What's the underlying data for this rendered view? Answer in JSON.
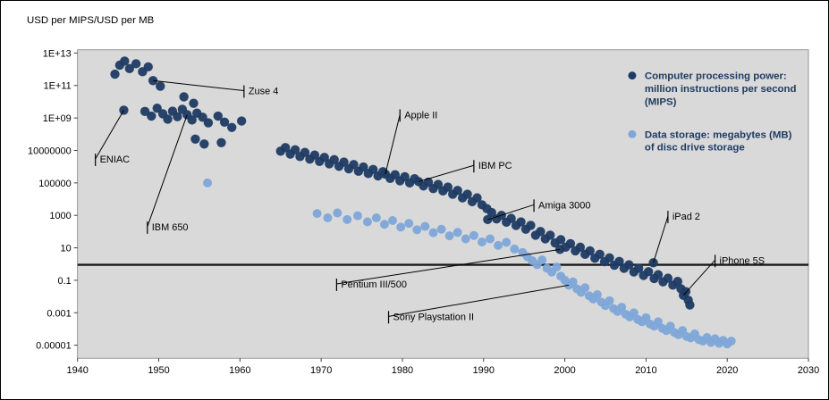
{
  "title": "USD per MIPS/USD per MB",
  "colors": {
    "mips": "#1F3B63",
    "storage": "#7EA6D9",
    "plot_bg": "#D9D9D9",
    "plot_border": "#808080",
    "axis": "#404040",
    "reference_line": "#1A1A1A",
    "annotation_line": "#000000",
    "legend_text": "#1F3B63"
  },
  "legend": [
    {
      "key": "mips",
      "color": "#1F3B63",
      "lines": [
        "Computer processing power:",
        "million instructions per second",
        "(MIPS)"
      ]
    },
    {
      "key": "storage",
      "color": "#7EA6D9",
      "lines": [
        "Data storage: megabytes (MB)",
        "of disc drive storage"
      ]
    }
  ],
  "chart_data": {
    "type": "scatter",
    "title": "USD per MIPS/USD per MB",
    "y_scale": "log",
    "reference_line_y": 0.9,
    "x_axis": {
      "min": 1940,
      "max": 2030,
      "ticks": [
        1940,
        1950,
        1960,
        1970,
        1980,
        1990,
        2000,
        2010,
        2020,
        2030
      ]
    },
    "y_axis": {
      "ticks": [
        {
          "label": "1E+13",
          "value": 10000000000000.0
        },
        {
          "label": "1E+11",
          "value": 100000000000.0
        },
        {
          "label": "1E+09",
          "value": 1000000000.0
        },
        {
          "label": "10000000",
          "value": 10000000.0
        },
        {
          "label": "100000",
          "value": 100000.0
        },
        {
          "label": "1000",
          "value": 1000.0
        },
        {
          "label": "10",
          "value": 10
        },
        {
          "label": "0.1",
          "value": 0.1
        },
        {
          "label": "0.001",
          "value": 0.001
        },
        {
          "label": "0.00001",
          "value": 1e-05
        }
      ]
    },
    "series": [
      {
        "key": "mips",
        "name": "Computer processing power: million instructions per second (MIPS)",
        "color": "#1F3B63",
        "marker_radius": 5.2,
        "points": [
          [
            1944.6,
            500000000000.0
          ],
          [
            1945.2,
            1800000000000.0
          ],
          [
            1945.8,
            3200000000000.0
          ],
          [
            1946.4,
            1100000000000.0
          ],
          [
            1947.2,
            2200000000000.0
          ],
          [
            1948.0,
            700000000000.0
          ],
          [
            1948.7,
            1400000000000.0
          ],
          [
            1949.3,
            200000000000.0
          ],
          [
            1950.2,
            90000000000.0
          ],
          [
            1953.1,
            20000000000.0
          ],
          [
            1954.3,
            8000000000.0
          ],
          [
            1945.7,
            3000000000.0
          ],
          [
            1948.3,
            2500000000.0
          ],
          [
            1949.1,
            1300000000.0
          ],
          [
            1949.8,
            4000000000.0
          ],
          [
            1950.5,
            1800000000.0
          ],
          [
            1951.1,
            850000000.0
          ],
          [
            1951.7,
            2600000000.0
          ],
          [
            1952.3,
            1200000000.0
          ],
          [
            1952.9,
            3400000000.0
          ],
          [
            1953.5,
            1600000000.0
          ],
          [
            1954.1,
            750000000.0
          ],
          [
            1954.7,
            2000000000.0
          ],
          [
            1955.4,
            1100000000.0
          ],
          [
            1956.1,
            500000000.0
          ],
          [
            1957.3,
            1300000000.0
          ],
          [
            1958.1,
            550000000.0
          ],
          [
            1959.0,
            260000000.0
          ],
          [
            1960.2,
            650000000.0
          ],
          [
            1954.5,
            50000000.0
          ],
          [
            1955.6,
            25000000.0
          ],
          [
            1957.7,
            30000000.0
          ],
          [
            1965.0,
            9000000.0
          ],
          [
            1965.6,
            15000000.0
          ],
          [
            1966.2,
            6000000.0
          ],
          [
            1966.8,
            11000000.0
          ],
          [
            1967.4,
            4200000.0
          ],
          [
            1968.0,
            7500000.0
          ],
          [
            1968.6,
            2900000.0
          ],
          [
            1969.2,
            5200000.0
          ],
          [
            1969.8,
            2100000.0
          ],
          [
            1970.4,
            3700000.0
          ],
          [
            1971.0,
            1500000.0
          ],
          [
            1971.6,
            2700000.0
          ],
          [
            1972.2,
            1050000.0
          ],
          [
            1972.8,
            1900000.0
          ],
          [
            1973.4,
            740000.0
          ],
          [
            1974.0,
            1350000.0
          ],
          [
            1974.6,
            520000.0
          ],
          [
            1975.2,
            950000.0
          ],
          [
            1975.8,
            380000.0
          ],
          [
            1976.4,
            680000.0
          ],
          [
            1977.0,
            270000.0
          ],
          [
            1977.6,
            490000.0
          ],
          [
            1977.9,
            350000.0
          ],
          [
            1978.5,
            190000.0
          ],
          [
            1979.1,
            320000.0
          ],
          [
            1979.7,
            135000.0
          ],
          [
            1980.3,
            240000.0
          ],
          [
            1980.9,
            100000.0
          ],
          [
            1981.5,
            180000.0
          ],
          [
            1982.0,
            120000.0
          ],
          [
            1982.6,
            65000.0
          ],
          [
            1983.2,
            110000.0
          ],
          [
            1983.8,
            45000.0
          ],
          [
            1984.4,
            80000.0
          ],
          [
            1985.0,
            32000.0
          ],
          [
            1985.6,
            55000.0
          ],
          [
            1986.2,
            20000.0
          ],
          [
            1986.8,
            34000.0
          ],
          [
            1987.4,
            12000.0
          ],
          [
            1988.0,
            20000.0
          ],
          [
            1988.6,
            7000.0
          ],
          [
            1989.2,
            12000.0
          ],
          [
            1989.8,
            4500.0
          ],
          [
            1990.4,
            2600.0
          ],
          [
            1990.5,
            550
          ],
          [
            1991.0,
            1500.0
          ],
          [
            1991.6,
            600
          ],
          [
            1992.2,
            1000.0
          ],
          [
            1992.8,
            380
          ],
          [
            1993.4,
            650
          ],
          [
            1994.0,
            240
          ],
          [
            1994.6,
            400
          ],
          [
            1995.2,
            140
          ],
          [
            1995.8,
            240
          ],
          [
            1996.4,
            60
          ],
          [
            1997.0,
            100
          ],
          [
            1997.6,
            36
          ],
          [
            1998.2,
            60
          ],
          [
            1998.8,
            20
          ],
          [
            1999.4,
            8
          ],
          [
            1999.5,
            32
          ],
          [
            2000.1,
            11
          ],
          [
            2000.7,
            18
          ],
          [
            2001.3,
            6.5
          ],
          [
            2001.9,
            11
          ],
          [
            2002.5,
            4
          ],
          [
            2003.1,
            6.5
          ],
          [
            2003.7,
            2.3
          ],
          [
            2004.3,
            4
          ],
          [
            2004.9,
            1.4
          ],
          [
            2005.5,
            2.4
          ],
          [
            2006.1,
            0.85
          ],
          [
            2006.7,
            1.45
          ],
          [
            2007.3,
            0.55
          ],
          [
            2007.9,
            0.9
          ],
          [
            2008.5,
            0.33
          ],
          [
            2009.1,
            0.55
          ],
          [
            2009.7,
            0.2
          ],
          [
            2010.3,
            0.34
          ],
          [
            2010.9,
            1.2
          ],
          [
            2011.0,
            0.13
          ],
          [
            2011.5,
            0.22
          ],
          [
            2012.1,
            0.08
          ],
          [
            2012.7,
            0.135
          ],
          [
            2013.3,
            0.05
          ],
          [
            2013.9,
            0.085
          ],
          [
            2014.3,
            0.03
          ],
          [
            2014.6,
            0.012
          ],
          [
            2014.9,
            0.02
          ],
          [
            2015.2,
            0.006
          ],
          [
            2015.4,
            0.003
          ]
        ]
      },
      {
        "key": "storage",
        "name": "Data storage: megabytes (MB) of disc drive storage",
        "color": "#7EA6D9",
        "marker_radius": 5.0,
        "points": [
          [
            1956.0,
            100000.0
          ],
          [
            1969.5,
            1300
          ],
          [
            1970.8,
            700
          ],
          [
            1972.0,
            1400
          ],
          [
            1973.2,
            550
          ],
          [
            1974.5,
            950
          ],
          [
            1975.7,
            400
          ],
          [
            1976.8,
            700
          ],
          [
            1977.8,
            280
          ],
          [
            1978.8,
            480
          ],
          [
            1979.8,
            190
          ],
          [
            1980.8,
            320
          ],
          [
            1981.8,
            130
          ],
          [
            1982.8,
            210
          ],
          [
            1983.8,
            85
          ],
          [
            1984.8,
            140
          ],
          [
            1985.8,
            55
          ],
          [
            1986.8,
            90
          ],
          [
            1987.8,
            36
          ],
          [
            1988.8,
            58
          ],
          [
            1989.8,
            23
          ],
          [
            1990.8,
            36
          ],
          [
            1991.8,
            14
          ],
          [
            1992.8,
            22
          ],
          [
            1993.8,
            8.5
          ],
          [
            1994.8,
            5.2
          ],
          [
            1995.4,
            2.8
          ],
          [
            1996.0,
            1.6
          ],
          [
            1996.6,
            0.9
          ],
          [
            1997.2,
            1.8
          ],
          [
            1997.8,
            0.55
          ],
          [
            1998.4,
            0.32
          ],
          [
            1999.0,
            0.65
          ],
          [
            1999.5,
            0.18
          ],
          [
            2000.0,
            0.1
          ],
          [
            2000.5,
            0.05
          ],
          [
            2001.0,
            0.08
          ],
          [
            2001.5,
            0.03
          ],
          [
            2002.0,
            0.018
          ],
          [
            2002.5,
            0.035
          ],
          [
            2003.0,
            0.011
          ],
          [
            2003.5,
            0.007
          ],
          [
            2004.0,
            0.013
          ],
          [
            2004.5,
            0.0045
          ],
          [
            2005.0,
            0.0028
          ],
          [
            2005.5,
            0.0055
          ],
          [
            2006.0,
            0.0018
          ],
          [
            2006.5,
            0.0012
          ],
          [
            2007.0,
            0.0022
          ],
          [
            2007.5,
            0.0008
          ],
          [
            2008.0,
            0.00055
          ],
          [
            2008.5,
            0.001
          ],
          [
            2009.0,
            0.00038
          ],
          [
            2009.5,
            0.00028
          ],
          [
            2010.0,
            0.0005
          ],
          [
            2010.5,
            0.0002
          ],
          [
            2011.0,
            0.00015
          ],
          [
            2011.5,
            0.00028
          ],
          [
            2012.0,
            0.00011
          ],
          [
            2012.5,
            8e-05
          ],
          [
            2013.0,
            0.00015
          ],
          [
            2013.5,
            6e-05
          ],
          [
            2014.0,
            4.5e-05
          ],
          [
            2014.5,
            8e-05
          ],
          [
            2015.0,
            3.5e-05
          ],
          [
            2015.5,
            2.8e-05
          ],
          [
            2016.0,
            5e-05
          ],
          [
            2016.5,
            2.2e-05
          ],
          [
            2017.0,
            1.8e-05
          ],
          [
            2017.5,
            3e-05
          ],
          [
            2018.0,
            1.5e-05
          ],
          [
            2018.5,
            2.5e-05
          ],
          [
            2019.0,
            1.3e-05
          ],
          [
            2019.5,
            2e-05
          ],
          [
            2020.0,
            1.2e-05
          ],
          [
            2020.5,
            1.8e-05
          ]
        ]
      }
    ],
    "annotations": [
      {
        "label": "ENIAC",
        "anchor": [
          1942.2,
          3000000.0
        ],
        "target": [
          1945.7,
          3000000000.0
        ]
      },
      {
        "label": "Zuse 4",
        "anchor": [
          1960.5,
          48000000000.0
        ],
        "target": [
          1949.3,
          200000000000.0
        ]
      },
      {
        "label": "IBM 650",
        "anchor": [
          1948.6,
          200
        ],
        "target": [
          1953.5,
          1600000000.0
        ]
      },
      {
        "label": "Apple II",
        "anchor": [
          1979.7,
          1600000000.0
        ],
        "target": [
          1977.9,
          350000.0
        ]
      },
      {
        "label": "IBM PC",
        "anchor": [
          1988.8,
          1200000.0
        ],
        "target": [
          1982.0,
          120000.0
        ]
      },
      {
        "label": "Amiga 3000",
        "anchor": [
          1996.2,
          4500.0
        ],
        "target": [
          1990.5,
          550
        ]
      },
      {
        "label": "Pentium III/500",
        "anchor": [
          1971.9,
          0.06
        ],
        "target": [
          1999.4,
          8
        ]
      },
      {
        "label": "Sony Playstation II",
        "anchor": [
          1978.3,
          0.0006
        ],
        "target": [
          2000.5,
          0.05
        ]
      },
      {
        "label": "iPad 2",
        "anchor": [
          2012.7,
          900
        ],
        "target": [
          2010.9,
          1.2
        ]
      },
      {
        "label": "iPhone 5S",
        "anchor": [
          2018.5,
          1.75
        ],
        "target": [
          2014.6,
          0.012
        ]
      }
    ]
  }
}
